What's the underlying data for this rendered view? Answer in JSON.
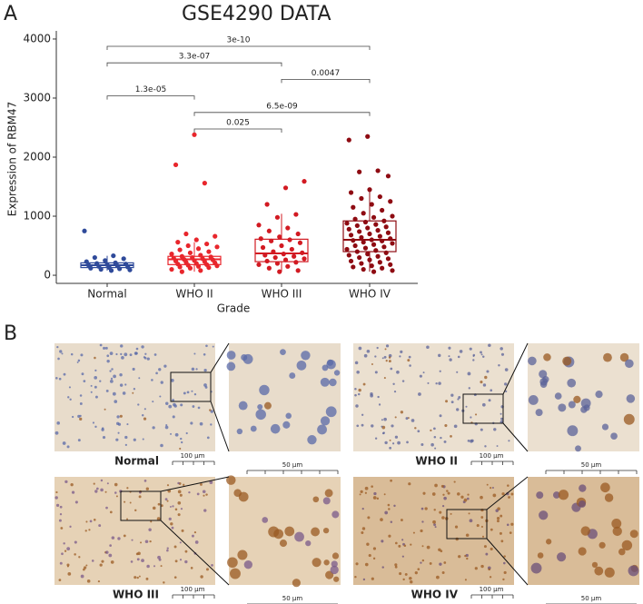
{
  "chart_data": {
    "type": "box",
    "panel_label": "A",
    "title": "GSE4290 DATA",
    "y_label": "Expression of RBM47",
    "x_label": "Grade",
    "ylim": [
      -130,
      4130
    ],
    "yticks": [
      0,
      1000,
      2000,
      3000,
      4000
    ],
    "groups": [
      {
        "name": "Normal",
        "color": "#2f4a9a",
        "box": {
          "min": 80,
          "q1": 130,
          "median": 170,
          "q3": 210,
          "max": 330
        },
        "points": [
          750,
          330,
          300,
          280,
          250,
          230,
          210,
          200,
          190,
          180,
          170,
          160,
          150,
          140,
          130,
          120,
          110,
          100,
          90,
          80
        ]
      },
      {
        "name": "WHO II",
        "color": "#e8262c",
        "box": {
          "min": 60,
          "q1": 180,
          "median": 270,
          "q3": 320,
          "max": 560
        },
        "points": [
          2380,
          1870,
          1560,
          700,
          660,
          600,
          560,
          530,
          500,
          480,
          450,
          430,
          400,
          380,
          360,
          340,
          320,
          310,
          300,
          290,
          280,
          270,
          260,
          250,
          240,
          230,
          220,
          210,
          200,
          190,
          180,
          170,
          160,
          150,
          140,
          130,
          120,
          100,
          80,
          60
        ]
      },
      {
        "name": "WHO III",
        "color": "#d21a22",
        "box": {
          "min": 60,
          "q1": 230,
          "median": 370,
          "q3": 610,
          "max": 1040
        },
        "points": [
          1590,
          1480,
          1200,
          1030,
          980,
          850,
          800,
          750,
          700,
          650,
          620,
          600,
          580,
          550,
          500,
          470,
          440,
          400,
          380,
          360,
          340,
          320,
          300,
          280,
          260,
          240,
          220,
          200,
          180,
          150,
          120,
          80,
          60
        ]
      },
      {
        "name": "WHO IV",
        "color": "#8e0b12",
        "box": {
          "min": 60,
          "q1": 400,
          "median": 600,
          "q3": 920,
          "max": 1460
        },
        "points": [
          2350,
          2290,
          1770,
          1750,
          1680,
          1450,
          1400,
          1330,
          1300,
          1250,
          1200,
          1150,
          1100,
          1050,
          1000,
          980,
          950,
          920,
          900,
          880,
          860,
          840,
          820,
          800,
          780,
          760,
          740,
          720,
          700,
          680,
          660,
          640,
          620,
          600,
          590,
          580,
          560,
          540,
          520,
          500,
          480,
          460,
          440,
          420,
          400,
          380,
          360,
          340,
          320,
          300,
          280,
          260,
          240,
          220,
          200,
          180,
          160,
          140,
          120,
          100,
          80,
          60
        ]
      }
    ],
    "comparisons": [
      {
        "groups": [
          "Normal",
          "WHO IV"
        ],
        "label": "3e-10"
      },
      {
        "groups": [
          "Normal",
          "WHO III"
        ],
        "label": "3.3e-07"
      },
      {
        "groups": [
          "WHO III",
          "WHO IV"
        ],
        "label": "0.0047"
      },
      {
        "groups": [
          "Normal",
          "WHO II"
        ],
        "label": "1.3e-05"
      },
      {
        "groups": [
          "WHO II",
          "WHO IV"
        ],
        "label": "6.5e-09"
      },
      {
        "groups": [
          "WHO II",
          "WHO III"
        ],
        "label": "0.025"
      }
    ]
  },
  "panel_b": {
    "panel_label": "B",
    "panels": [
      {
        "label": "Normal",
        "scale_main": "100 µm",
        "scale_zoom": "50 µm"
      },
      {
        "label": "WHO II",
        "scale_main": "100 µm",
        "scale_zoom": "50 µm"
      },
      {
        "label": "WHO III",
        "scale_main": "100 µm",
        "scale_zoom": "50 µm"
      },
      {
        "label": "WHO IV",
        "scale_main": "100 µm",
        "scale_zoom": "50 µm"
      }
    ]
  }
}
